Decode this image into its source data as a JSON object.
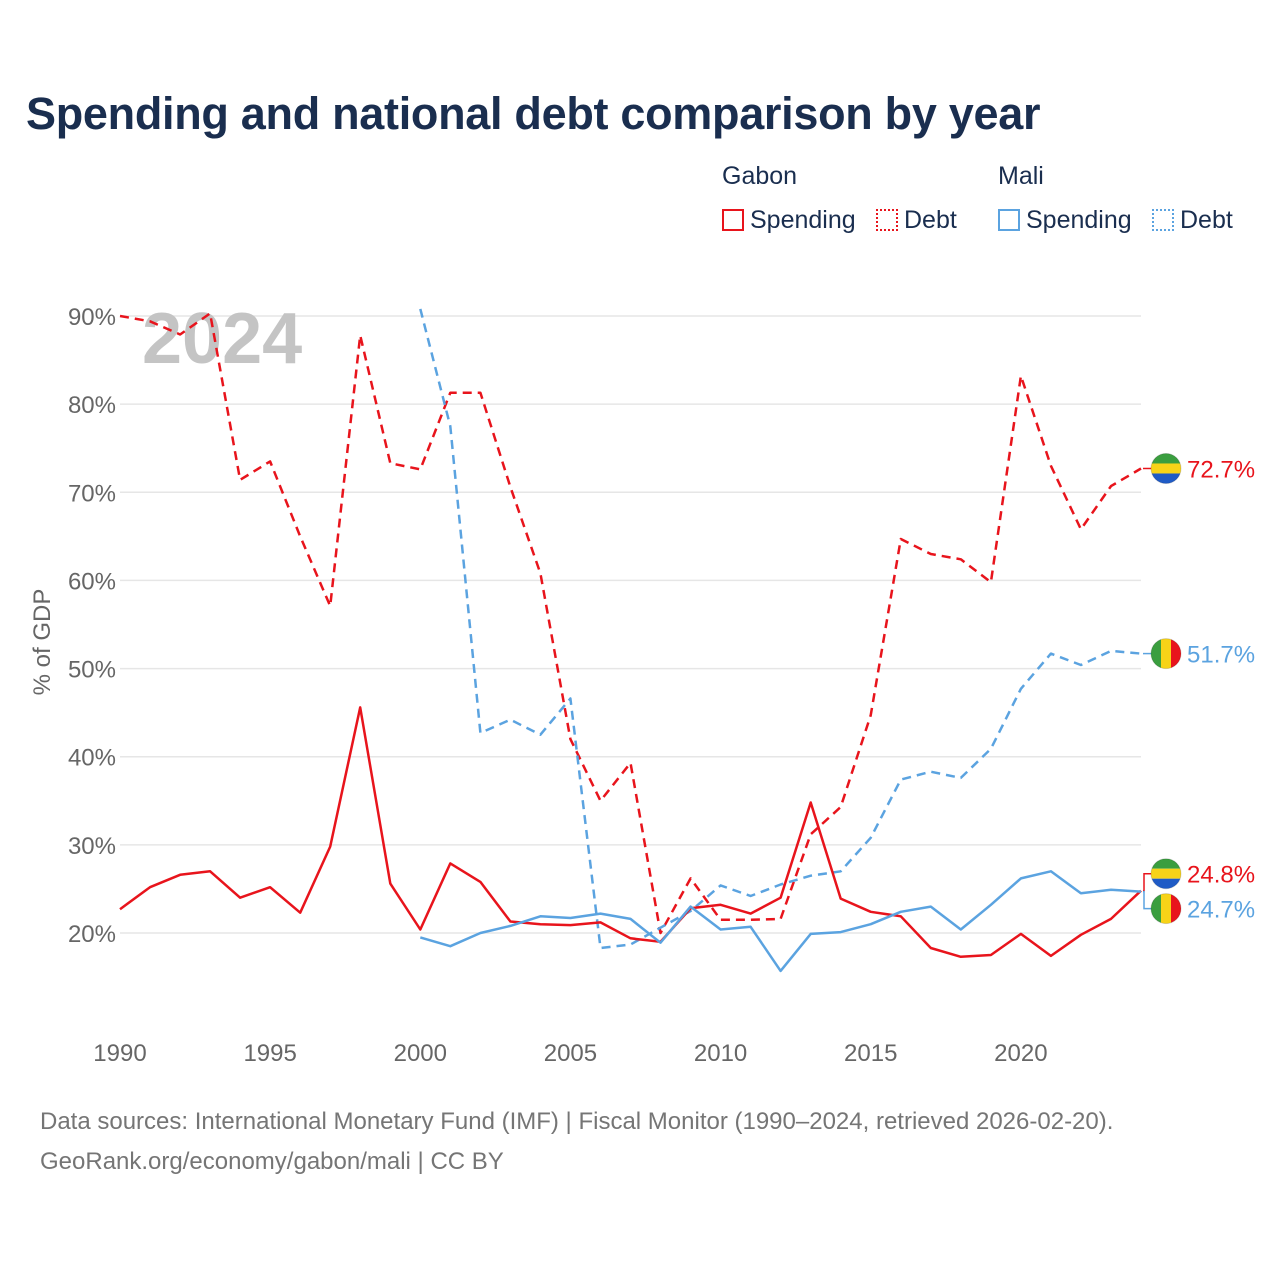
{
  "title": "Spending and national debt comparison by year",
  "legend": {
    "groups": [
      {
        "name": "Gabon",
        "items": [
          {
            "label": "Spending",
            "style": "solid",
            "color": "#e8141c"
          },
          {
            "label": "Debt",
            "style": "dotted",
            "color": "#e8141c"
          }
        ]
      },
      {
        "name": "Mali",
        "items": [
          {
            "label": "Spending",
            "style": "solid",
            "color": "#5ba3e0"
          },
          {
            "label": "Debt",
            "style": "dotted",
            "color": "#5ba3e0"
          }
        ]
      }
    ]
  },
  "footer": {
    "source": "Data sources: International Monetary Fund (IMF) | Fiscal Monitor (1990–2024, retrieved 2026-02-20).",
    "credit": "GeoRank.org/economy/gabon/mali | CC BY"
  },
  "chart_data": {
    "type": "line",
    "title": "Spending and national debt comparison by year",
    "year_watermark": "2024",
    "xlabel": "",
    "ylabel": "% of GDP",
    "xlim": [
      1990,
      2024
    ],
    "ylim": [
      10,
      90
    ],
    "x_ticks": [
      1990,
      1995,
      2000,
      2005,
      2010,
      2015,
      2020
    ],
    "y_ticks": [
      20,
      30,
      40,
      50,
      60,
      70,
      80,
      90
    ],
    "y_tick_labels": [
      "20%",
      "30%",
      "40%",
      "50%",
      "60%",
      "70%",
      "80%",
      "90%"
    ],
    "grid": true,
    "series": [
      {
        "name": "Gabon Debt",
        "country": "Gabon",
        "metric": "Debt",
        "color": "#e8141c",
        "dash": "dashed",
        "x": [
          1990,
          1991,
          1992,
          1993,
          1994,
          1995,
          1996,
          1997,
          1998,
          1999,
          2000,
          2001,
          2002,
          2003,
          2004,
          2005,
          2006,
          2007,
          2008,
          2009,
          2010,
          2011,
          2012,
          2013,
          2014,
          2015,
          2016,
          2017,
          2018,
          2019,
          2020,
          2021,
          2022,
          2023,
          2024
        ],
        "values": [
          90.0,
          89.4,
          87.9,
          90.3,
          71.4,
          73.5,
          65.0,
          57.1,
          87.8,
          73.3,
          72.6,
          81.3,
          81.3,
          70.6,
          60.8,
          42.0,
          35.0,
          39.3,
          20.0,
          26.2,
          21.5,
          21.5,
          21.6,
          31.2,
          34.3,
          44.7,
          64.7,
          63.0,
          62.4,
          59.8,
          83.2,
          73.0,
          65.8,
          70.7,
          72.7
        ],
        "end_label": "72.7%"
      },
      {
        "name": "Mali Debt",
        "country": "Mali",
        "metric": "Debt",
        "color": "#5ba3e0",
        "dash": "dashed",
        "x": [
          2000,
          2001,
          2002,
          2003,
          2004,
          2005,
          2006,
          2007,
          2008,
          2009,
          2010,
          2011,
          2012,
          2013,
          2014,
          2015,
          2016,
          2017,
          2018,
          2019,
          2020,
          2021,
          2022,
          2023,
          2024
        ],
        "values": [
          90.8,
          77.5,
          42.7,
          44.2,
          42.5,
          46.6,
          18.3,
          18.7,
          20.6,
          22.5,
          25.4,
          24.2,
          25.5,
          26.5,
          27.0,
          30.8,
          37.4,
          38.3,
          37.6,
          40.9,
          47.7,
          51.7,
          50.4,
          52.0,
          51.7
        ],
        "end_label": "51.7%"
      },
      {
        "name": "Gabon Spending",
        "country": "Gabon",
        "metric": "Spending",
        "color": "#e8141c",
        "dash": "solid",
        "x": [
          1990,
          1991,
          1992,
          1993,
          1994,
          1995,
          1996,
          1997,
          1998,
          1999,
          2000,
          2001,
          2002,
          2003,
          2004,
          2005,
          2006,
          2007,
          2008,
          2009,
          2010,
          2011,
          2012,
          2013,
          2014,
          2015,
          2016,
          2017,
          2018,
          2019,
          2020,
          2021,
          2022,
          2023,
          2024
        ],
        "values": [
          22.7,
          25.2,
          26.6,
          27.0,
          24.0,
          25.2,
          22.3,
          29.8,
          45.6,
          25.6,
          20.4,
          27.9,
          25.8,
          21.3,
          21.0,
          20.9,
          21.2,
          19.4,
          19.0,
          22.8,
          23.2,
          22.2,
          24.0,
          34.8,
          23.9,
          22.4,
          21.9,
          18.3,
          17.3,
          17.5,
          19.9,
          17.4,
          19.8,
          21.6,
          24.8
        ],
        "end_label": "24.8%"
      },
      {
        "name": "Mali Spending",
        "country": "Mali",
        "metric": "Spending",
        "color": "#5ba3e0",
        "dash": "solid",
        "x": [
          2000,
          2001,
          2002,
          2003,
          2004,
          2005,
          2006,
          2007,
          2008,
          2009,
          2010,
          2011,
          2012,
          2013,
          2014,
          2015,
          2016,
          2017,
          2018,
          2019,
          2020,
          2021,
          2022,
          2023,
          2024
        ],
        "values": [
          19.5,
          18.5,
          20.0,
          20.8,
          21.9,
          21.7,
          22.2,
          21.6,
          18.9,
          23.0,
          20.4,
          20.7,
          15.7,
          19.9,
          20.1,
          21.0,
          22.4,
          23.0,
          20.4,
          23.2,
          26.2,
          27.0,
          24.5,
          24.9,
          24.7
        ],
        "end_label": "24.7%"
      }
    ]
  },
  "flags": {
    "gabon": [
      "#3a9e3f",
      "#f7d318",
      "#1f5bc6"
    ],
    "mali": [
      "#3a9e3f",
      "#f7d318",
      "#e8141c"
    ]
  }
}
